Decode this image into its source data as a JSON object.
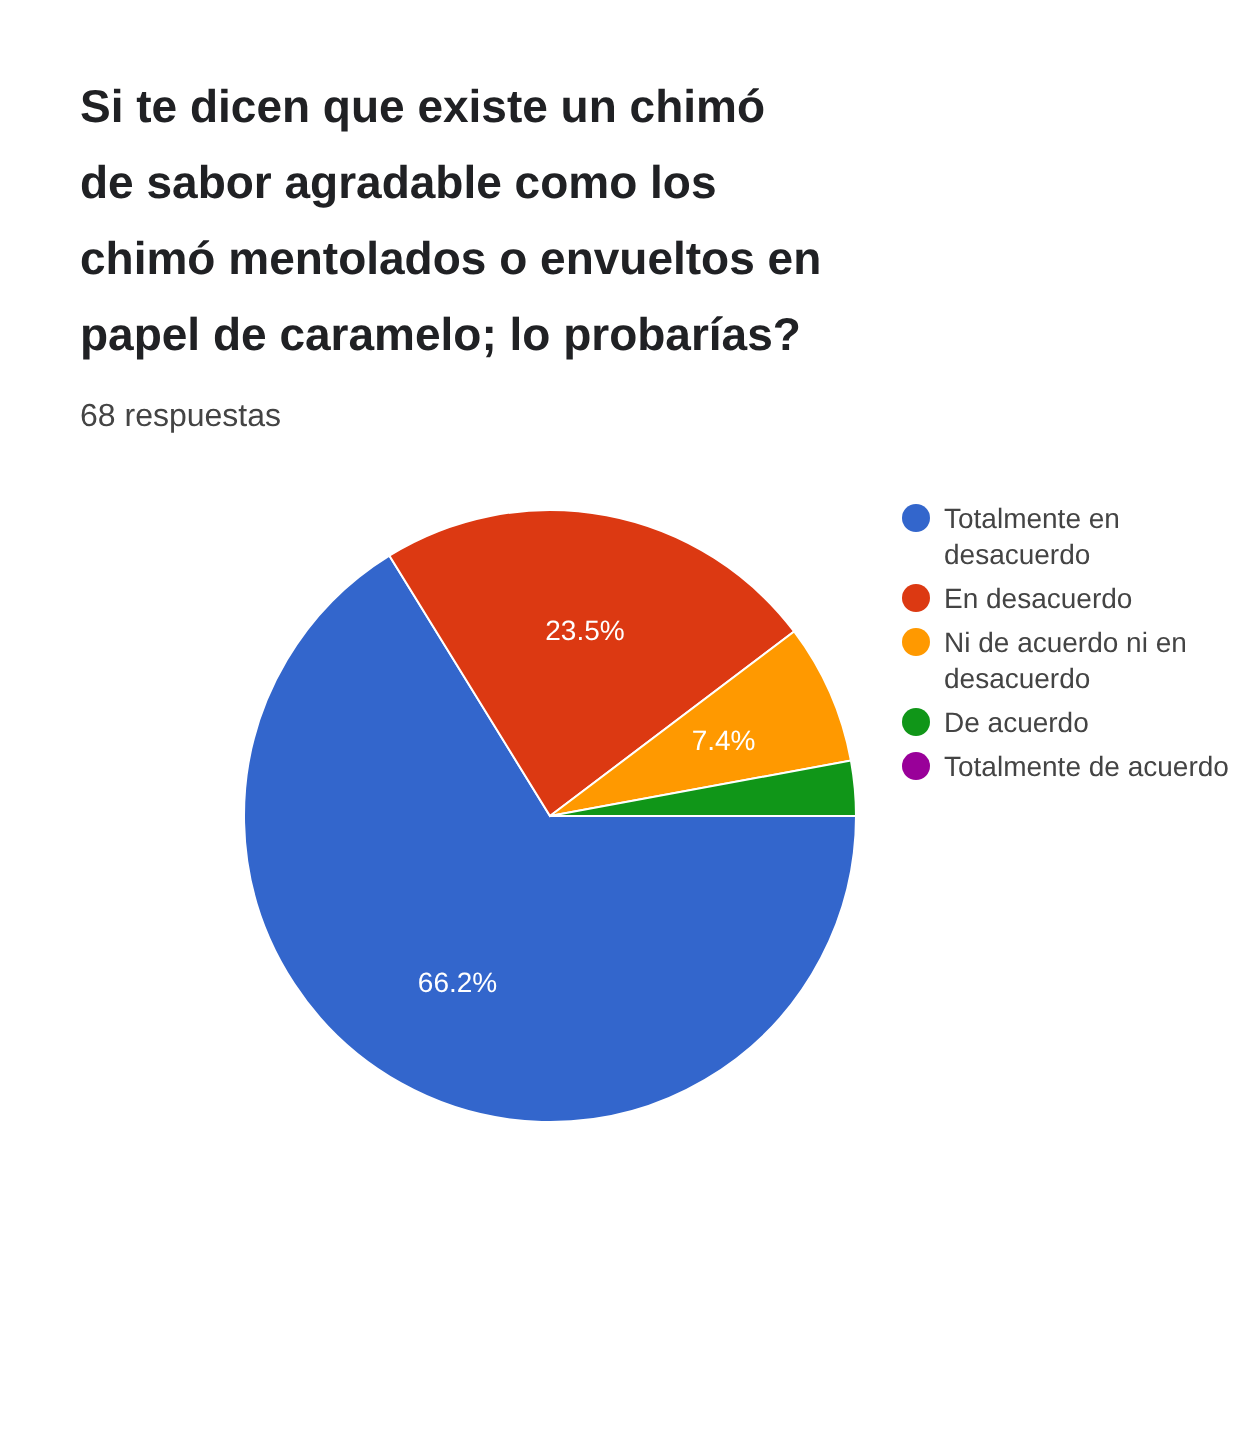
{
  "chart_data": {
    "type": "pie",
    "title": "Si te dicen que existe un chimó de sabor agradable como los chimó mentolados o envueltos en papel de caramelo; lo probarías?",
    "subtitle": "68 respuestas",
    "categories": [
      "Totalmente en desacuerdo",
      "En desacuerdo",
      "Ni de acuerdo ni en desacuerdo",
      "De acuerdo",
      "Totalmente de acuerdo"
    ],
    "values": [
      66.2,
      23.5,
      7.4,
      2.9,
      0
    ],
    "colors": [
      "#3366cc",
      "#dc3912",
      "#ff9900",
      "#109618",
      "#990099"
    ],
    "value_labels": [
      "66.2%",
      "23.5%",
      "7.4%",
      null,
      null
    ],
    "legend": "right"
  }
}
